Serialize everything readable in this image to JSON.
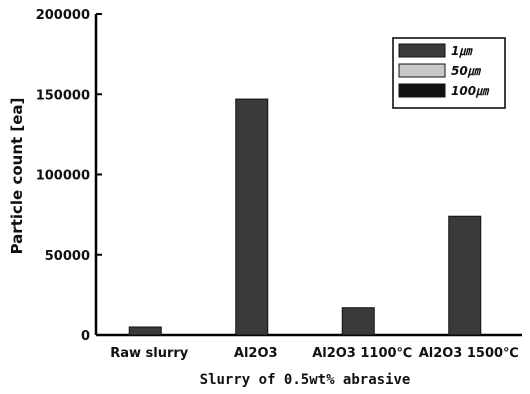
{
  "chart_data": {
    "type": "bar",
    "categories": [
      "Raw slurry",
      "Al2O3",
      "Al2O3 1100℃",
      "Al2O3 1500℃"
    ],
    "series": [
      {
        "name": "1㎛",
        "values": [
          5000,
          147000,
          17000,
          74000
        ],
        "color": "#3a3a3a"
      },
      {
        "name": "50㎛",
        "values": [
          0,
          0,
          0,
          0
        ],
        "color": "#c8c8c8"
      },
      {
        "name": "100㎛",
        "values": [
          0,
          0,
          0,
          0
        ],
        "color": "#111111"
      }
    ],
    "xlabel": "Slurry of 0.5wt% abrasive",
    "ylabel": "Particle count [ea]",
    "ylim": [
      0,
      200000
    ],
    "yticks": [
      "0",
      "50000",
      "100000",
      "150000",
      "200000"
    ],
    "grid": false,
    "legend_position": "top-right"
  }
}
